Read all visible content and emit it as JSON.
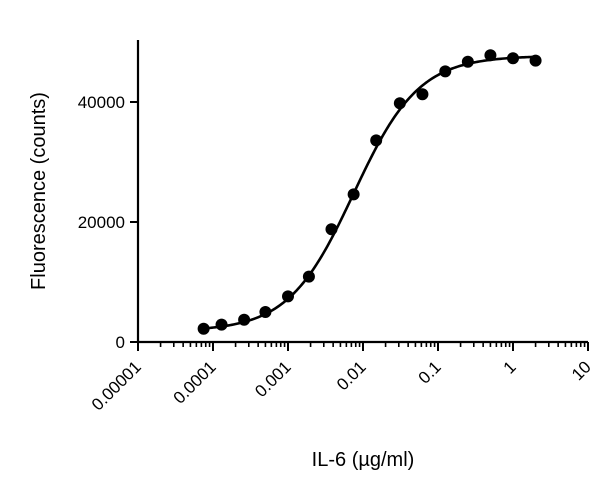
{
  "chart_data": {
    "type": "scatter",
    "title": "",
    "xlabel": "IL-6 (µg/ml)",
    "ylabel": "Fluorescence (counts)",
    "x_scale": "log",
    "xlim": [
      1e-05,
      10
    ],
    "ylim": [
      0,
      50000
    ],
    "x_ticks": [
      "0.00001",
      "0.0001",
      "0.001",
      "0.01",
      "0.1",
      "1",
      "10"
    ],
    "y_ticks": [
      "0",
      "20000",
      "40000"
    ],
    "grid": false,
    "legend": "none",
    "series": [
      {
        "marker": "filled-circle",
        "color": "#000000",
        "x": [
          7.5e-05,
          0.00013,
          0.00026,
          0.0005,
          0.001,
          0.0019,
          0.0038,
          0.0075,
          0.015,
          0.031,
          0.062,
          0.125,
          0.25,
          0.5,
          1,
          2
        ],
        "y": [
          2200,
          2900,
          3700,
          5000,
          7600,
          10900,
          18800,
          24600,
          33600,
          39800,
          41300,
          45100,
          46700,
          47800,
          47300,
          46900
        ]
      }
    ],
    "fit_curve": {
      "model": "4PL",
      "bottom": 1800,
      "top": 47700,
      "ec50": 0.0075,
      "hill": 1.0,
      "x_range": [
        7.5e-05,
        2
      ]
    }
  }
}
